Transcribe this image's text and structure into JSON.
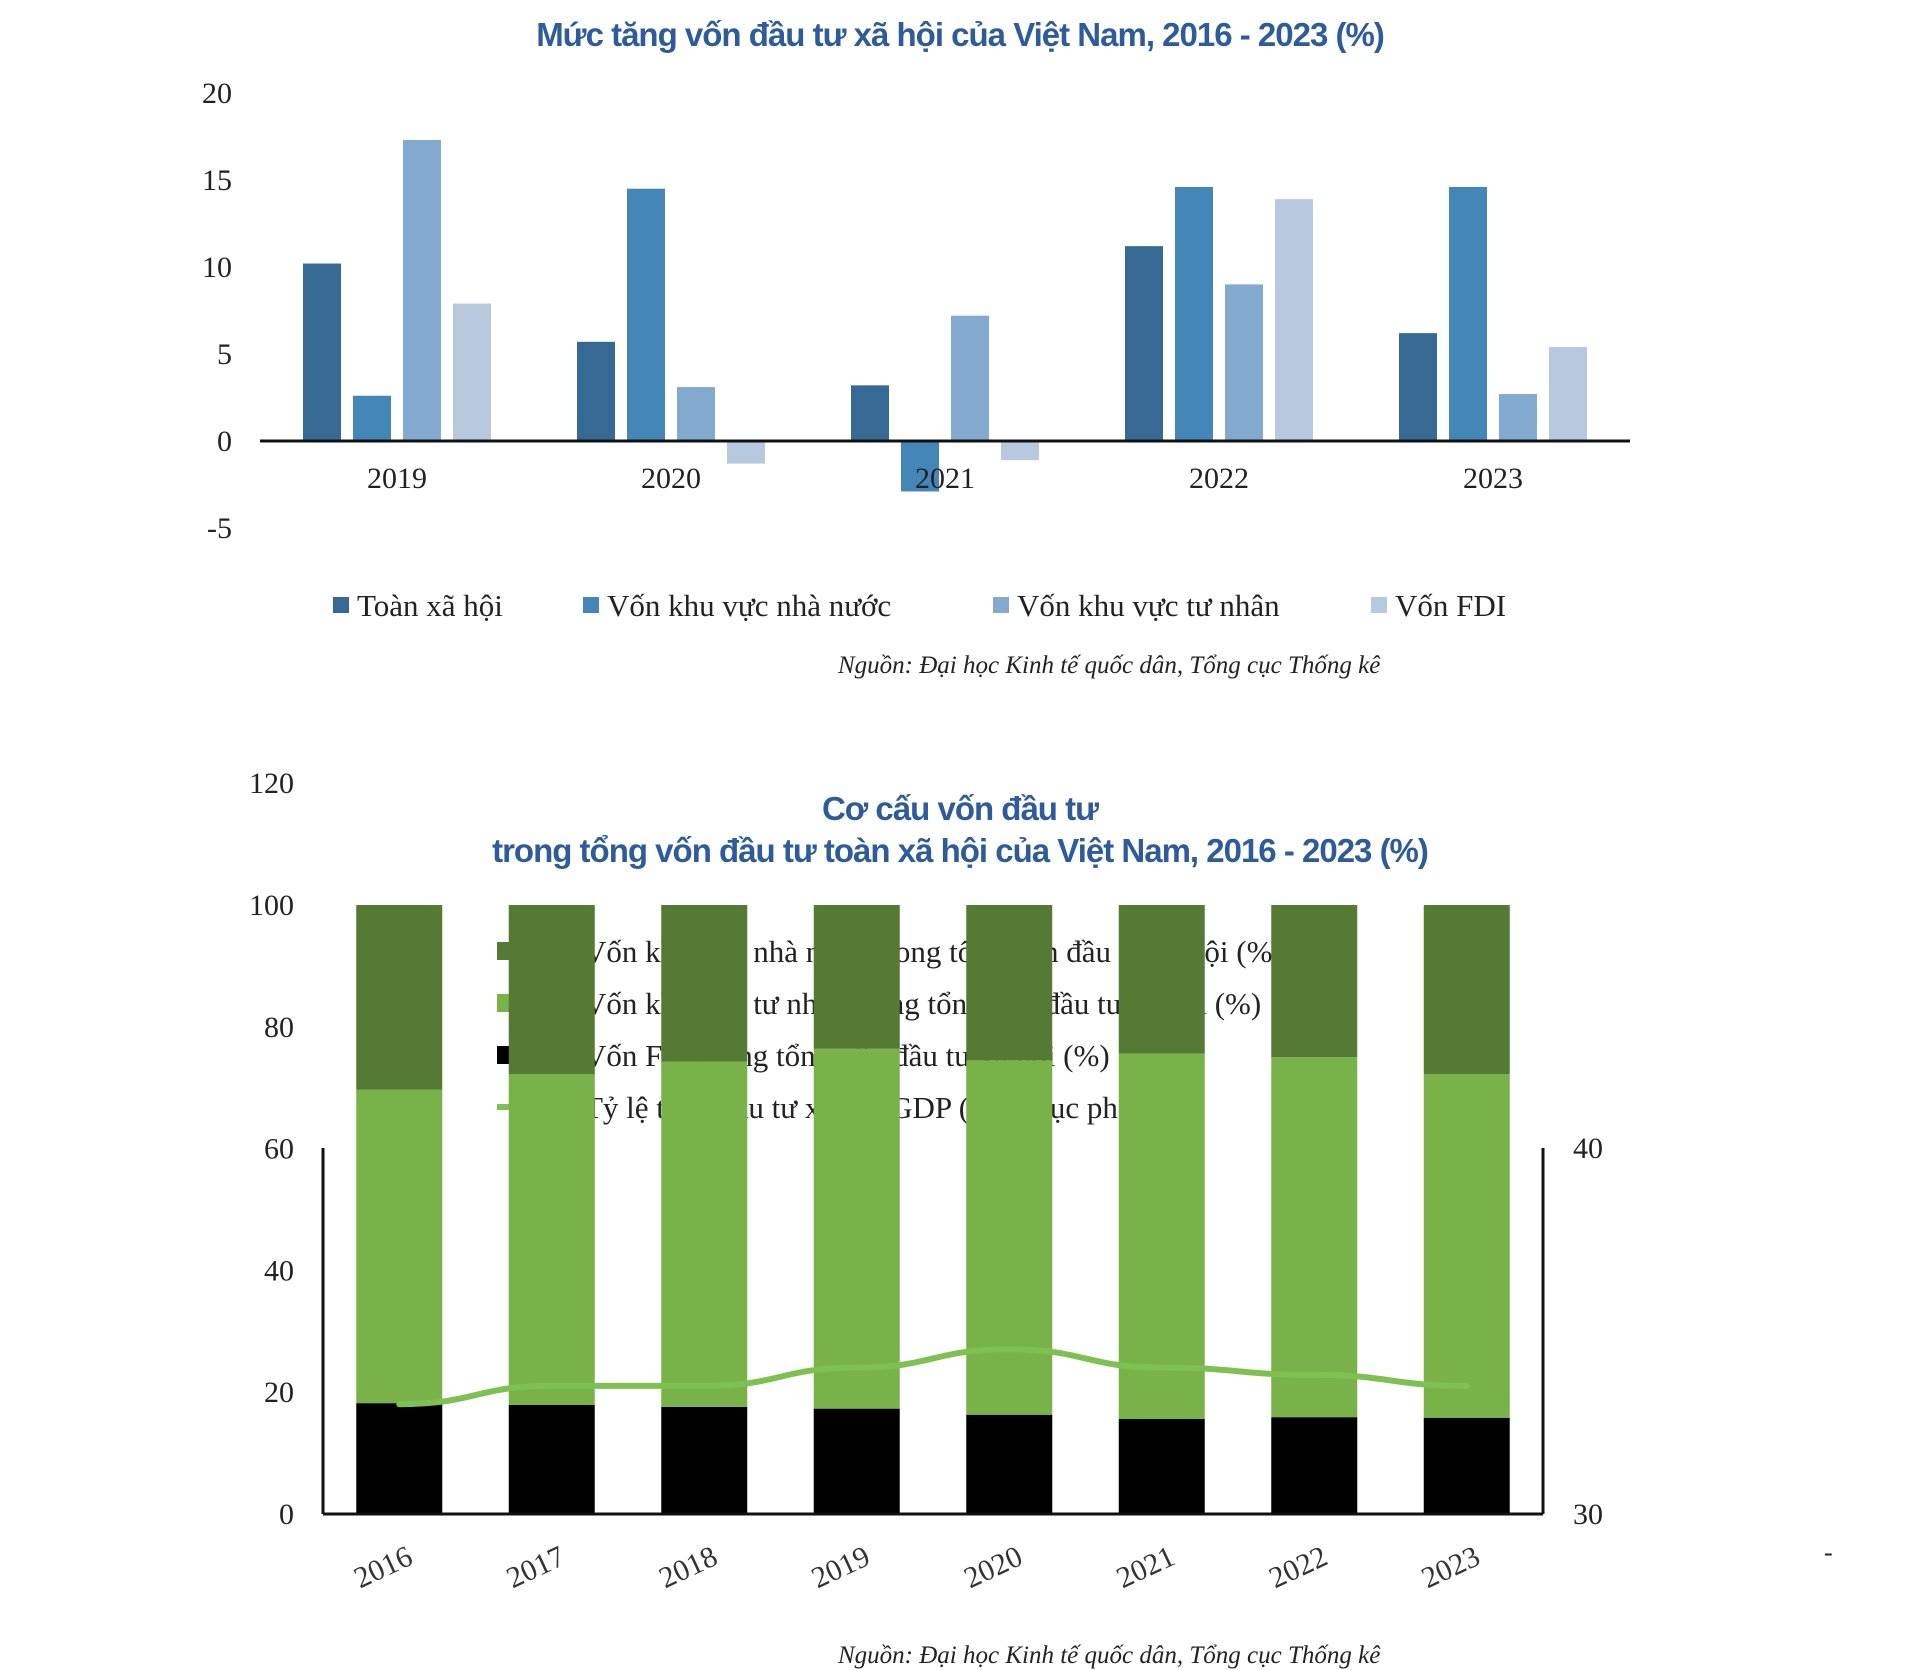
{
  "chart_data": [
    {
      "type": "bar",
      "title": "Mức tăng vốn đầu tư xã hội của Việt Nam, 2016 - 2023 (%)",
      "categories": [
        "2019",
        "2020",
        "2021",
        "2022",
        "2023"
      ],
      "series": [
        {
          "name": "Toàn xã hội",
          "color": "#366a95",
          "values": [
            10.2,
            5.7,
            3.2,
            11.2,
            6.2
          ]
        },
        {
          "name": "Vốn khu vực nhà nước",
          "color": "#4486b8",
          "values": [
            2.6,
            14.5,
            -2.9,
            14.6,
            14.6
          ]
        },
        {
          "name": "Vốn khu vực tư nhân",
          "color": "#83a9cf",
          "values": [
            17.3,
            3.1,
            7.2,
            9.0,
            2.7
          ]
        },
        {
          "name": "Vốn FDI",
          "color": "#b7c9df",
          "values": [
            7.9,
            -1.3,
            -1.1,
            13.9,
            5.4
          ]
        }
      ],
      "y_ticks": [
        "20",
        "15",
        "10",
        "5",
        "0",
        "-5"
      ],
      "ylim": [
        -5,
        20
      ],
      "grid": false,
      "legend_position": "bottom",
      "source": "Nguồn: Đại học Kinh tế quốc dân, Tổng cục Thống kê"
    },
    {
      "type": "bar",
      "stacked": true,
      "title": "Cơ cấu vốn đầu tư",
      "subtitle": "trong tổng vốn đầu tư toàn xã hội của Việt Nam, 2016 - 2023 (%)",
      "categories": [
        "2016",
        "2017",
        "2018",
        "2019",
        "2020",
        "2021",
        "2022",
        "2023"
      ],
      "series": [
        {
          "name": "Vốn FDI trong tổng vốn đầu tư xã hội (%)",
          "color": "#000000",
          "values": [
            18.2,
            17.9,
            17.6,
            17.3,
            16.3,
            15.6,
            15.9,
            15.8
          ]
        },
        {
          "name": "Vốn khu vực tư nhân trong tổng vốn đầu tư xã hội (%)",
          "color": "#78b248",
          "values": [
            51.5,
            54.3,
            56.7,
            59.1,
            58.2,
            60.0,
            59.1,
            56.4
          ]
        },
        {
          "name": "Vốn khu vực nhà nước trong tổng vốn đầu tư xã hội (%)",
          "color": "#547a34",
          "values": [
            30.3,
            27.8,
            25.7,
            23.6,
            25.5,
            24.4,
            25.0,
            27.8
          ]
        }
      ],
      "line_series": {
        "name": "Tỷ lệ tổng đầu tư xã hội/GDP (%) - trục phải",
        "color": "#7ec152",
        "axis": "right",
        "values": [
          33.0,
          33.5,
          33.5,
          34.0,
          34.5,
          34.0,
          33.8,
          33.5
        ]
      },
      "legend_order": [
        {
          "name": "Vốn khu vực nhà nước trong tổng vốn đầu tư xã hội (%)",
          "swatch": "box",
          "color": "#547a34"
        },
        {
          "name": "Vốn khu vực tư nhân trong tổng vốn đầu tư xã hội (%)",
          "swatch": "box",
          "color": "#78b248"
        },
        {
          "name": "Vốn FDI trong tổng vốn đầu tư xã hội (%)",
          "swatch": "box",
          "color": "#000000"
        },
        {
          "name": "Tỷ lệ tổng đầu tư xã hội/GDP (%) - trục phải",
          "swatch": "line",
          "color": "#7ec152"
        }
      ],
      "y_ticks": [
        "120",
        "100",
        "80",
        "60",
        "40",
        "20",
        "0"
      ],
      "ylim": [
        0,
        120
      ],
      "y2_ticks": [
        "40",
        "30"
      ],
      "y2lim": [
        30,
        40
      ],
      "grid": false,
      "legend_position": "top",
      "source": "Nguồn: Đại học Kinh tế quốc dân, Tổng cục Thống kê"
    }
  ],
  "stray_mark": "-"
}
